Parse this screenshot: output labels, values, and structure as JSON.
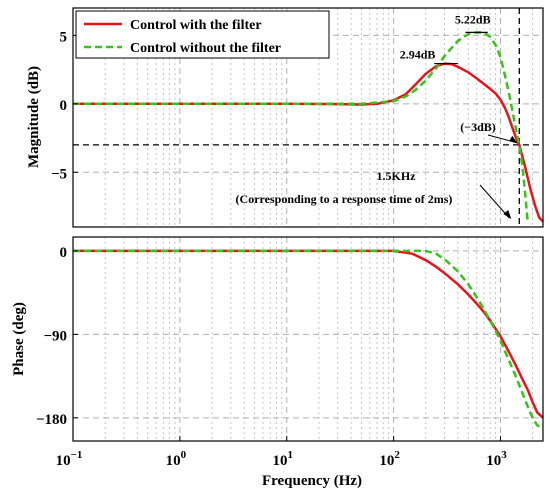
{
  "chart_data": [
    {
      "type": "line",
      "panel": "magnitude",
      "xscale": "log",
      "xlim": [
        0.1,
        2500
      ],
      "ylim": [
        -9,
        7
      ],
      "yticks": [
        5,
        0,
        -5
      ],
      "ytick_labels": [
        "5",
        "0",
        "−5"
      ],
      "ylabel": "Magnitude (dB)",
      "grid": true,
      "legend": "top-left",
      "series": [
        {
          "name": "Control with the filter",
          "color": "#e8141c",
          "style": "solid",
          "x": [
            0.1,
            1,
            10,
            30,
            50,
            70,
            100,
            130,
            160,
            200,
            250,
            300,
            350,
            400,
            500,
            600,
            700,
            800,
            900,
            1000,
            1100,
            1200,
            1300,
            1400,
            1500,
            1700,
            1900,
            2100,
            2300,
            2500
          ],
          "y": [
            0,
            0,
            0,
            -0.02,
            -0.05,
            0,
            0.25,
            0.7,
            1.4,
            2.2,
            2.75,
            2.94,
            2.9,
            2.7,
            2.3,
            1.85,
            1.45,
            1.1,
            0.75,
            0.3,
            -0.3,
            -1.0,
            -1.8,
            -2.5,
            -3.0,
            -4.6,
            -6.2,
            -7.4,
            -8.3,
            -8.6
          ]
        },
        {
          "name": "Control without the filter",
          "color": "#39c21a",
          "style": "dashed",
          "x": [
            0.1,
            1,
            10,
            50,
            100,
            130,
            160,
            200,
            250,
            300,
            400,
            500,
            600,
            700,
            800,
            900,
            1000,
            1100,
            1200,
            1300,
            1400,
            1500,
            1600,
            1700,
            1800
          ],
          "y": [
            0,
            0,
            0,
            0,
            0.2,
            0.55,
            1.0,
            1.7,
            2.6,
            3.5,
            4.6,
            5.1,
            5.22,
            5.2,
            4.9,
            4.3,
            3.4,
            2.1,
            0.8,
            -0.6,
            -1.9,
            -3.0,
            -4.5,
            -6.5,
            -8.7
          ]
        }
      ],
      "annotations": [
        {
          "text": "5.22dB",
          "x": 600,
          "y": 5.22
        },
        {
          "text": "2.94dB",
          "x": 320,
          "y": 2.94
        },
        {
          "text": "(−3dB)",
          "x": 1450,
          "y": -3
        },
        {
          "text": "1.5KHz",
          "x": 1500,
          "y": -9
        },
        {
          "text": "(Corresponding to a response time of 2ms)",
          "x": 1500,
          "y": -9
        }
      ],
      "reference_lines": {
        "horizontal_y": -3,
        "vertical_x": 1500
      }
    },
    {
      "type": "line",
      "panel": "phase",
      "xscale": "log",
      "xlim": [
        0.1,
        2500
      ],
      "ylim": [
        -205,
        15
      ],
      "yticks": [
        0,
        -90,
        -180
      ],
      "ytick_labels": [
        "0",
        "−90",
        "−180"
      ],
      "xticks": [
        0.1,
        1,
        10,
        100,
        1000
      ],
      "xtick_labels": [
        [
          "10",
          "−1"
        ],
        [
          "10",
          "0"
        ],
        [
          "10",
          "1"
        ],
        [
          "10",
          "2"
        ],
        [
          "10",
          "3"
        ]
      ],
      "xlabel": "Frequency  (Hz)",
      "ylabel": "Phase (deg)",
      "grid": true,
      "series": [
        {
          "name": "Control with the filter",
          "color": "#e8141c",
          "style": "solid",
          "x": [
            0.1,
            1,
            10,
            100,
            150,
            200,
            250,
            300,
            400,
            500,
            600,
            700,
            800,
            900,
            1000,
            1200,
            1400,
            1600,
            1800,
            2000,
            2200,
            2500
          ],
          "y": [
            0,
            0,
            0,
            0,
            -3,
            -10,
            -17,
            -24,
            -36,
            -47,
            -57,
            -66,
            -75,
            -84,
            -92,
            -109,
            -124,
            -138,
            -150,
            -163,
            -174,
            -180
          ]
        },
        {
          "name": "Control without the filter",
          "color": "#39c21a",
          "style": "dashed",
          "x": [
            0.1,
            1,
            10,
            100,
            200,
            250,
            300,
            400,
            500,
            600,
            700,
            800,
            900,
            1000,
            1200,
            1400,
            1600,
            1800,
            2000,
            2200,
            2500
          ],
          "y": [
            0,
            0,
            0,
            0,
            0,
            -3,
            -9,
            -22,
            -36,
            -50,
            -63,
            -75,
            -86,
            -97,
            -118,
            -136,
            -153,
            -168,
            -180,
            -188,
            -192
          ]
        }
      ]
    }
  ]
}
